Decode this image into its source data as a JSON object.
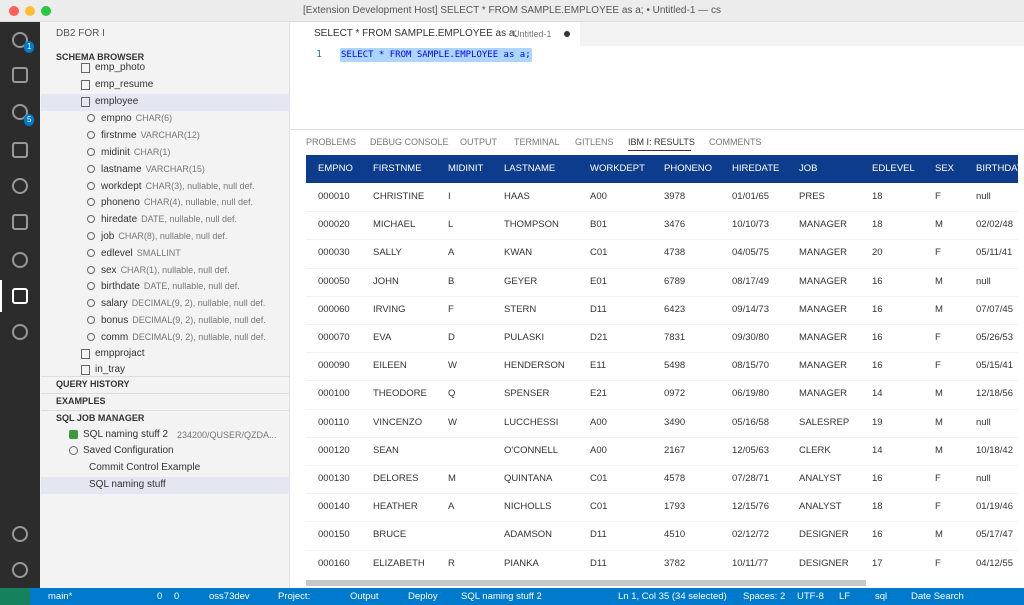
{
  "window": {
    "title": "[Extension Development Host] SELECT * FROM SAMPLE.EMPLOYEE as a; • Untitled-1 — cs"
  },
  "activity": {
    "badges": [
      "1",
      "5"
    ]
  },
  "sidebar": {
    "title": "DB2 FOR I",
    "schema_browser": {
      "title": "SCHEMA BROWSER",
      "tables_before": [
        "emp_photo",
        "emp_resume",
        "employee"
      ],
      "columns": [
        {
          "name": "empno",
          "detail": "CHAR(6)"
        },
        {
          "name": "firstnme",
          "detail": "VARCHAR(12)"
        },
        {
          "name": "midinit",
          "detail": "CHAR(1)"
        },
        {
          "name": "lastname",
          "detail": "VARCHAR(15)"
        },
        {
          "name": "workdept",
          "detail": "CHAR(3), nullable, null def."
        },
        {
          "name": "phoneno",
          "detail": "CHAR(4), nullable, null def."
        },
        {
          "name": "hiredate",
          "detail": "DATE, nullable, null def."
        },
        {
          "name": "job",
          "detail": "CHAR(8), nullable, null def."
        },
        {
          "name": "edlevel",
          "detail": "SMALLINT"
        },
        {
          "name": "sex",
          "detail": "CHAR(1), nullable, null def."
        },
        {
          "name": "birthdate",
          "detail": "DATE, nullable, null def."
        },
        {
          "name": "salary",
          "detail": "DECIMAL(9, 2), nullable, null def."
        },
        {
          "name": "bonus",
          "detail": "DECIMAL(9, 2), nullable, null def."
        },
        {
          "name": "comm",
          "detail": "DECIMAL(9, 2), nullable, null def."
        }
      ],
      "tables_after": [
        "empprojact",
        "in_tray"
      ]
    },
    "query_history": "QUERY HISTORY",
    "examples": "EXAMPLES",
    "job_manager": {
      "title": "SQL JOB MANAGER",
      "job": "SQL naming stuff 2",
      "job_detail": "234200/QUSER/QZDA...",
      "saved": "Saved Configuration",
      "configs": [
        "Commit Control Example",
        "SQL naming stuff"
      ]
    }
  },
  "editor": {
    "tab": "SELECT * FROM SAMPLE.EMPLOYEE as a;",
    "tab_file": "Untitled-1",
    "line": "1",
    "code": "SELECT * FROM SAMPLE.EMPLOYEE as a;"
  },
  "panel": {
    "tabs": [
      "PROBLEMS",
      "DEBUG CONSOLE",
      "OUTPUT",
      "TERMINAL",
      "GITLENS",
      "IBM I: RESULTS",
      "COMMENTS"
    ],
    "table": {
      "header": [
        "EMPNO",
        "FIRSTNME",
        "MIDINIT",
        "LASTNAME",
        "WORKDEPT",
        "PHONENO",
        "HIREDATE",
        "JOB",
        "EDLEVEL",
        "SEX",
        "BIRTHDATE"
      ],
      "rows": [
        [
          "000010",
          "CHRISTINE",
          "I",
          "HAAS",
          "A00",
          "3978",
          "01/01/65",
          "PRES",
          "18",
          "F",
          "null"
        ],
        [
          "000020",
          "MICHAEL",
          "L",
          "THOMPSON",
          "B01",
          "3476",
          "10/10/73",
          "MANAGER",
          "18",
          "M",
          "02/02/48"
        ],
        [
          "000030",
          "SALLY",
          "A",
          "KWAN",
          "C01",
          "4738",
          "04/05/75",
          "MANAGER",
          "20",
          "F",
          "05/11/41"
        ],
        [
          "000050",
          "JOHN",
          "B",
          "GEYER",
          "E01",
          "6789",
          "08/17/49",
          "MANAGER",
          "16",
          "M",
          "null"
        ],
        [
          "000060",
          "IRVING",
          "F",
          "STERN",
          "D11",
          "6423",
          "09/14/73",
          "MANAGER",
          "16",
          "M",
          "07/07/45"
        ],
        [
          "000070",
          "EVA",
          "D",
          "PULASKI",
          "D21",
          "7831",
          "09/30/80",
          "MANAGER",
          "16",
          "F",
          "05/26/53"
        ],
        [
          "000090",
          "EILEEN",
          "W",
          "HENDERSON",
          "E11",
          "5498",
          "08/15/70",
          "MANAGER",
          "16",
          "F",
          "05/15/41"
        ],
        [
          "000100",
          "THEODORE",
          "Q",
          "SPENSER",
          "E21",
          "0972",
          "06/19/80",
          "MANAGER",
          "14",
          "M",
          "12/18/56"
        ],
        [
          "000110",
          "VINCENZO",
          "W",
          "LUCCHESSI",
          "A00",
          "3490",
          "05/16/58",
          "SALESREP",
          "19",
          "M",
          "null"
        ],
        [
          "000120",
          "SEAN",
          null,
          "O'CONNELL",
          "A00",
          "2167",
          "12/05/63",
          "CLERK",
          "14",
          "M",
          "10/18/42"
        ],
        [
          "000130",
          "DELORES",
          "M",
          "QUINTANA",
          "C01",
          "4578",
          "07/28/71",
          "ANALYST",
          "16",
          "F",
          "null"
        ],
        [
          "000140",
          "HEATHER",
          "A",
          "NICHOLLS",
          "C01",
          "1793",
          "12/15/76",
          "ANALYST",
          "18",
          "F",
          "01/19/46"
        ],
        [
          "000150",
          "BRUCE",
          null,
          "ADAMSON",
          "D11",
          "4510",
          "02/12/72",
          "DESIGNER",
          "16",
          "M",
          "05/17/47"
        ],
        [
          "000160",
          "ELIZABETH",
          "R",
          "PIANKA",
          "D11",
          "3782",
          "10/11/77",
          "DESIGNER",
          "17",
          "F",
          "04/12/55"
        ]
      ]
    }
  },
  "status": {
    "left": [
      "main*",
      "0",
      "0",
      "oss73dev",
      "Project:",
      "Output",
      "Deploy",
      "SQL naming stuff 2"
    ],
    "right": [
      "Ln 1, Col 35 (34 selected)",
      "Spaces: 2",
      "UTF-8",
      "LF",
      "sql",
      "Date Search"
    ]
  }
}
